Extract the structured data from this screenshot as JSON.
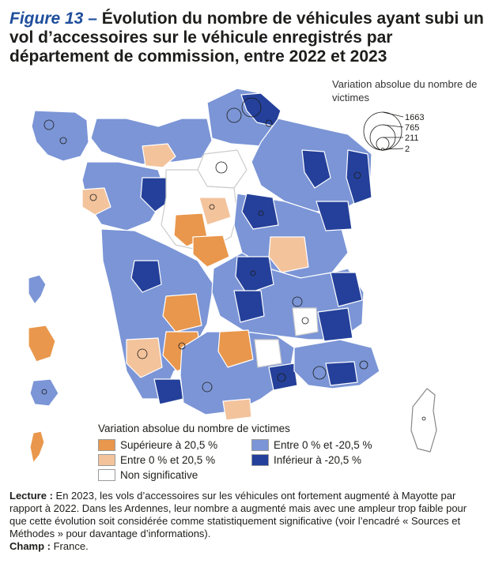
{
  "title": {
    "figure_label": "Figure 13",
    "dash": " – ",
    "text": "Évolution du nombre de véhicules ayant subi un vol d’accessoires sur le véhicule enregistrés par département de commission, entre 2022 et 2023"
  },
  "size_legend": {
    "title": "Variation absolue du nombre de victimes",
    "values": [
      "1663",
      "765",
      "211",
      "2"
    ]
  },
  "color_legend": {
    "title": "Variation absolue du nombre de victimes",
    "items": [
      {
        "label": "Supérieure à 20,5 %",
        "color": "#e9974c"
      },
      {
        "label": "Entre 0 % et 20,5 %",
        "color": "#f3c39c"
      },
      {
        "label": "Non significative",
        "color": "#ffffff"
      },
      {
        "label": "Entre 0 % et -20,5 %",
        "color": "#7b95d6"
      },
      {
        "label": "Inférieur à -20,5 %",
        "color": "#24409a"
      }
    ]
  },
  "notes": {
    "lecture_label": "Lecture :",
    "lecture_text": " En 2023, les vols d’accessoires sur les véhicules ont fortement augmenté à Mayotte par rapport à 2022. Dans les Ardennes, leur nombre a augmenté mais avec une ampleur trop faible pour que cette évolution soit considérée comme statistiquement significative (voir l’encadré « Sources et Méthodes » pour davantage d’informations).",
    "champ_label": "Champ :",
    "champ_text": " France."
  }
}
